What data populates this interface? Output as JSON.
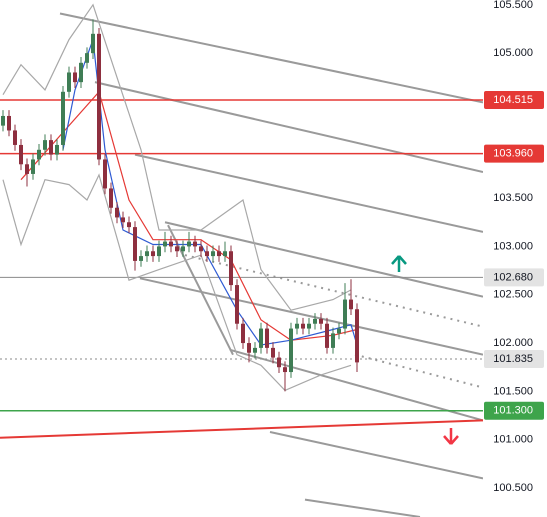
{
  "chart_data": {
    "type": "candlestick",
    "xlim": [
      -0.5,
      80
    ],
    "ylim": [
      100.2,
      105.55
    ],
    "yticks": [
      {
        "value": 105.5,
        "label": "105.500"
      },
      {
        "value": 105.0,
        "label": "105.000"
      },
      {
        "value": 104.5,
        "label": "104.500"
      },
      {
        "value": 104.0,
        "label": "104.000"
      },
      {
        "value": 103.5,
        "label": "103.500"
      },
      {
        "value": 103.0,
        "label": "103.000"
      },
      {
        "value": 102.5,
        "label": "102.500"
      },
      {
        "value": 102.0,
        "label": "102.000"
      },
      {
        "value": 101.5,
        "label": "101.500"
      },
      {
        "value": 101.0,
        "label": "101.000"
      },
      {
        "value": 100.5,
        "label": "100.500"
      }
    ],
    "up_color": "#3f7d55",
    "down_color": "#8e2f3f",
    "open": [
      104.25,
      104.35,
      104.2,
      104.05,
      103.85,
      103.75,
      103.9,
      104.0,
      104.1,
      103.95,
      104.05,
      104.6,
      104.8,
      104.7,
      104.9,
      105.0,
      105.2,
      103.9,
      103.6,
      103.4,
      103.3,
      103.25,
      103.2,
      102.85,
      102.9,
      102.95,
      102.9,
      103.0,
      103.05,
      103.0,
      102.95,
      103.0,
      103.05,
      103.0,
      102.95,
      102.9,
      102.95,
      102.9,
      102.95,
      102.6,
      102.2,
      102.0,
      101.9,
      101.95,
      102.15,
      101.95,
      101.85,
      101.75,
      101.7,
      102.15,
      102.2,
      102.15,
      102.2,
      102.25,
      102.2,
      101.95,
      102.1,
      102.15,
      102.45,
      102.35
    ],
    "high": [
      104.41,
      104.41,
      104.26,
      104.11,
      103.91,
      103.96,
      104.06,
      104.16,
      104.16,
      104.11,
      104.66,
      104.86,
      104.86,
      104.96,
      105.06,
      105.35,
      105.26,
      103.96,
      103.66,
      103.46,
      103.36,
      103.31,
      103.26,
      102.96,
      103.01,
      103.01,
      103.06,
      103.15,
      103.11,
      103.06,
      103.06,
      103.15,
      103.11,
      103.06,
      103.01,
      103.01,
      103.01,
      103.05,
      103.01,
      102.66,
      102.26,
      102.06,
      102.01,
      102.21,
      102.21,
      102.01,
      101.91,
      101.81,
      102.21,
      102.26,
      102.26,
      102.26,
      102.31,
      102.31,
      102.26,
      102.16,
      102.21,
      102.62,
      102.66,
      102.41
    ],
    "low": [
      104.19,
      104.14,
      103.99,
      103.79,
      103.62,
      103.69,
      103.84,
      103.94,
      103.89,
      103.89,
      103.99,
      104.54,
      104.64,
      104.64,
      104.84,
      104.94,
      103.84,
      103.54,
      103.34,
      103.24,
      103.19,
      103.14,
      102.75,
      102.79,
      102.84,
      102.84,
      102.84,
      102.94,
      102.94,
      102.89,
      102.89,
      102.94,
      102.94,
      102.89,
      102.84,
      102.84,
      102.84,
      102.84,
      102.54,
      102.14,
      101.94,
      101.8,
      101.84,
      101.89,
      101.89,
      101.79,
      101.69,
      101.5,
      101.64,
      102.09,
      102.09,
      102.09,
      102.14,
      102.14,
      101.89,
      101.89,
      102.04,
      102.09,
      102.29,
      101.7
    ],
    "close": [
      104.35,
      104.2,
      104.05,
      103.85,
      103.75,
      103.9,
      104.0,
      104.1,
      103.95,
      104.05,
      104.6,
      104.8,
      104.7,
      104.9,
      105.0,
      105.2,
      103.9,
      103.6,
      103.4,
      103.3,
      103.25,
      103.2,
      102.85,
      102.9,
      102.95,
      102.9,
      103.0,
      103.05,
      103.0,
      102.95,
      103.0,
      103.05,
      103.0,
      102.95,
      102.9,
      102.95,
      102.9,
      102.95,
      102.6,
      102.2,
      102.0,
      101.9,
      101.95,
      102.15,
      101.95,
      101.85,
      101.75,
      101.7,
      102.15,
      102.2,
      102.15,
      102.2,
      102.25,
      102.2,
      101.95,
      102.1,
      102.15,
      102.45,
      102.35,
      101.8
    ],
    "overlays": [
      {
        "color": "#a8a8a8",
        "x": [
          0,
          3,
          7,
          11,
          15,
          23,
          26,
          33,
          40,
          43,
          48,
          55,
          58
        ],
        "values": [
          104.57,
          104.88,
          104.62,
          105.14,
          105.5,
          104.0,
          103.17,
          103.17,
          103.48,
          102.76,
          102.34,
          102.45,
          102.55
        ]
      },
      {
        "color": "#a8a8a8",
        "x": [
          0,
          3,
          7,
          11,
          14,
          16,
          21,
          26,
          33,
          39,
          43,
          47,
          53,
          58
        ],
        "values": [
          103.69,
          103.02,
          103.69,
          103.64,
          103.48,
          103.74,
          102.65,
          102.76,
          102.91,
          101.88,
          101.77,
          101.51,
          101.67,
          101.77
        ]
      },
      {
        "color": "#e53935",
        "x": [
          3,
          16,
          21,
          25,
          33,
          38,
          43,
          48,
          55,
          59
        ],
        "values": [
          103.69,
          104.6,
          103.48,
          103.07,
          103.07,
          102.86,
          102.24,
          102.03,
          102.08,
          102.14
        ]
      },
      {
        "color": "#2f5bd3",
        "x": [
          10,
          12,
          15,
          17,
          20,
          25,
          33,
          39,
          43,
          48,
          55,
          58,
          59
        ],
        "values": [
          104.0,
          104.62,
          105.14,
          104.0,
          103.17,
          103.02,
          103.02,
          102.34,
          101.98,
          102.03,
          102.14,
          102.19,
          101.98
        ]
      }
    ],
    "trend_lines": [
      {
        "color": "#9a9a9a",
        "style": "solid",
        "x": [
          9.5,
          80
        ],
        "y": [
          105.41,
          104.49
        ]
      },
      {
        "color": "#9a9a9a",
        "style": "solid",
        "x": [
          15.33,
          80
        ],
        "y": [
          104.7,
          103.77
        ]
      },
      {
        "color": "#9a9a9a",
        "style": "solid",
        "x": [
          22,
          80
        ],
        "y": [
          103.95,
          103.15
        ]
      },
      {
        "color": "#9a9a9a",
        "style": "solid",
        "x": [
          27,
          80
        ],
        "y": [
          103.25,
          102.48
        ]
      },
      {
        "color": "#9a9a9a",
        "style": "solid",
        "x": [
          22.83,
          80
        ],
        "y": [
          102.67,
          101.88
        ]
      },
      {
        "color": "#9a9a9a",
        "style": "solid",
        "x": [
          37.83,
          80
        ],
        "y": [
          101.93,
          101.2
        ]
      },
      {
        "color": "#9a9a9a",
        "style": "solid",
        "x": [
          44.5,
          80
        ],
        "y": [
          101.08,
          100.6
        ]
      },
      {
        "color": "#9a9a9a",
        "style": "solid",
        "x": [
          50.33,
          69.5
        ],
        "y": [
          100.38,
          100.2
        ]
      },
      {
        "color": "#9a9a9a",
        "style": "solid",
        "x": [
          27.5,
          38.33
        ],
        "y": [
          103.22,
          101.88
        ]
      },
      {
        "color": "#9a9a9a",
        "style": "dotted",
        "x": [
          30.33,
          80
        ],
        "y": [
          102.91,
          102.17
        ]
      },
      {
        "color": "#9a9a9a",
        "style": "dotted",
        "x": [
          58.67,
          80
        ],
        "y": [
          101.88,
          101.54
        ]
      },
      {
        "color": "#e53935",
        "style": "solid",
        "x": [
          -0.5,
          80
        ],
        "y": [
          101.02,
          101.2
        ]
      }
    ],
    "levels": [
      {
        "value": 104.515,
        "color": "#e53935",
        "style": "solid",
        "text_color": "#ffffff"
      },
      {
        "value": {
          "value": 103.96,
          "label": "103.960"
        },
        "color": "#e53935",
        "style": "solid",
        "text_color": "#ffffff"
      },
      {
        "value": {
          "value": 102.68,
          "label": "102.680"
        },
        "color": "#8a8a8a",
        "style": "solid",
        "label_bg": "#e3e3e3",
        "text_color": "#131722"
      },
      {
        "value": 101.835,
        "color": "#8a8a8a",
        "style": "dotted",
        "label_bg": "#e3e3e3",
        "text_color": "#131722"
      },
      {
        "value": {
          "value": 101.3,
          "label": "101.300"
        },
        "color": "#3ea44b",
        "style": "solid",
        "text_color": "#ffffff"
      }
    ]
  }
}
